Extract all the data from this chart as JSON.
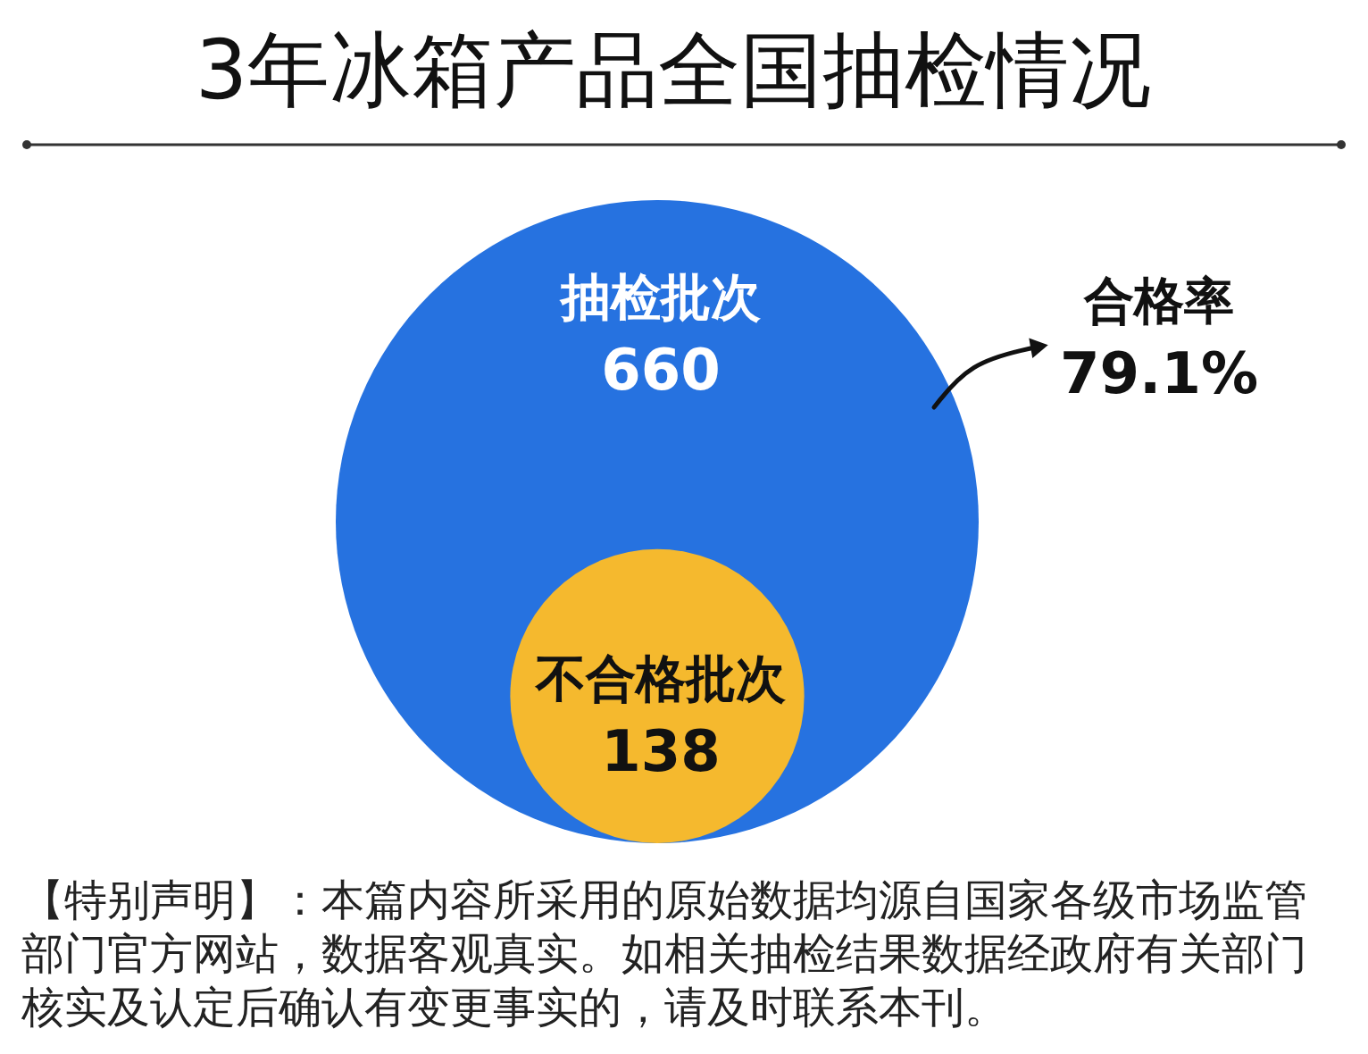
{
  "chart_data": {
    "type": "other",
    "title": "3年冰箱产品全国抽检情况",
    "categories": [
      "抽检批次",
      "不合格批次"
    ],
    "values": [
      660,
      138
    ],
    "colors": [
      "#2672e0",
      "#f5b92e"
    ],
    "data_labels": true,
    "annotations": [
      "合格率",
      "79.1%",
      "【特别声明】：本篇内容所采用的原始数据均源自国家各级市场监管部门官方网站，数据客观真实。如相关抽检结果数据经政府有关部门核实及认定后确认有变更事实的，请及时联系本刊。"
    ]
  }
}
